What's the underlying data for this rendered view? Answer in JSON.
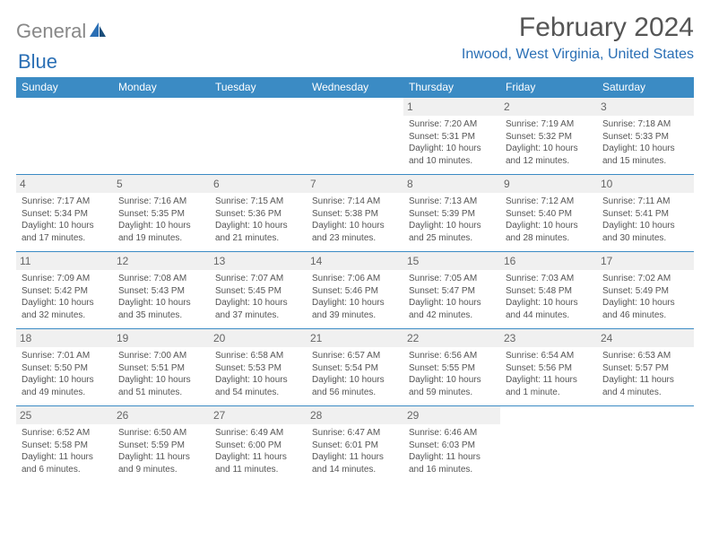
{
  "logo": {
    "text1": "General",
    "text2": "Blue"
  },
  "title": "February 2024",
  "location": "Inwood, West Virginia, United States",
  "colors": {
    "header_bg": "#3b8bc4",
    "header_text": "#ffffff",
    "accent": "#2a6fb5",
    "daynum_bg": "#f0f0f0",
    "body_text": "#555555",
    "row_divider": "#3b8bc4"
  },
  "day_headers": [
    "Sunday",
    "Monday",
    "Tuesday",
    "Wednesday",
    "Thursday",
    "Friday",
    "Saturday"
  ],
  "weeks": [
    [
      {
        "n": "",
        "sr": "",
        "ss": "",
        "dl": ""
      },
      {
        "n": "",
        "sr": "",
        "ss": "",
        "dl": ""
      },
      {
        "n": "",
        "sr": "",
        "ss": "",
        "dl": ""
      },
      {
        "n": "",
        "sr": "",
        "ss": "",
        "dl": ""
      },
      {
        "n": "1",
        "sr": "Sunrise: 7:20 AM",
        "ss": "Sunset: 5:31 PM",
        "dl": "Daylight: 10 hours and 10 minutes."
      },
      {
        "n": "2",
        "sr": "Sunrise: 7:19 AM",
        "ss": "Sunset: 5:32 PM",
        "dl": "Daylight: 10 hours and 12 minutes."
      },
      {
        "n": "3",
        "sr": "Sunrise: 7:18 AM",
        "ss": "Sunset: 5:33 PM",
        "dl": "Daylight: 10 hours and 15 minutes."
      }
    ],
    [
      {
        "n": "4",
        "sr": "Sunrise: 7:17 AM",
        "ss": "Sunset: 5:34 PM",
        "dl": "Daylight: 10 hours and 17 minutes."
      },
      {
        "n": "5",
        "sr": "Sunrise: 7:16 AM",
        "ss": "Sunset: 5:35 PM",
        "dl": "Daylight: 10 hours and 19 minutes."
      },
      {
        "n": "6",
        "sr": "Sunrise: 7:15 AM",
        "ss": "Sunset: 5:36 PM",
        "dl": "Daylight: 10 hours and 21 minutes."
      },
      {
        "n": "7",
        "sr": "Sunrise: 7:14 AM",
        "ss": "Sunset: 5:38 PM",
        "dl": "Daylight: 10 hours and 23 minutes."
      },
      {
        "n": "8",
        "sr": "Sunrise: 7:13 AM",
        "ss": "Sunset: 5:39 PM",
        "dl": "Daylight: 10 hours and 25 minutes."
      },
      {
        "n": "9",
        "sr": "Sunrise: 7:12 AM",
        "ss": "Sunset: 5:40 PM",
        "dl": "Daylight: 10 hours and 28 minutes."
      },
      {
        "n": "10",
        "sr": "Sunrise: 7:11 AM",
        "ss": "Sunset: 5:41 PM",
        "dl": "Daylight: 10 hours and 30 minutes."
      }
    ],
    [
      {
        "n": "11",
        "sr": "Sunrise: 7:09 AM",
        "ss": "Sunset: 5:42 PM",
        "dl": "Daylight: 10 hours and 32 minutes."
      },
      {
        "n": "12",
        "sr": "Sunrise: 7:08 AM",
        "ss": "Sunset: 5:43 PM",
        "dl": "Daylight: 10 hours and 35 minutes."
      },
      {
        "n": "13",
        "sr": "Sunrise: 7:07 AM",
        "ss": "Sunset: 5:45 PM",
        "dl": "Daylight: 10 hours and 37 minutes."
      },
      {
        "n": "14",
        "sr": "Sunrise: 7:06 AM",
        "ss": "Sunset: 5:46 PM",
        "dl": "Daylight: 10 hours and 39 minutes."
      },
      {
        "n": "15",
        "sr": "Sunrise: 7:05 AM",
        "ss": "Sunset: 5:47 PM",
        "dl": "Daylight: 10 hours and 42 minutes."
      },
      {
        "n": "16",
        "sr": "Sunrise: 7:03 AM",
        "ss": "Sunset: 5:48 PM",
        "dl": "Daylight: 10 hours and 44 minutes."
      },
      {
        "n": "17",
        "sr": "Sunrise: 7:02 AM",
        "ss": "Sunset: 5:49 PM",
        "dl": "Daylight: 10 hours and 46 minutes."
      }
    ],
    [
      {
        "n": "18",
        "sr": "Sunrise: 7:01 AM",
        "ss": "Sunset: 5:50 PM",
        "dl": "Daylight: 10 hours and 49 minutes."
      },
      {
        "n": "19",
        "sr": "Sunrise: 7:00 AM",
        "ss": "Sunset: 5:51 PM",
        "dl": "Daylight: 10 hours and 51 minutes."
      },
      {
        "n": "20",
        "sr": "Sunrise: 6:58 AM",
        "ss": "Sunset: 5:53 PM",
        "dl": "Daylight: 10 hours and 54 minutes."
      },
      {
        "n": "21",
        "sr": "Sunrise: 6:57 AM",
        "ss": "Sunset: 5:54 PM",
        "dl": "Daylight: 10 hours and 56 minutes."
      },
      {
        "n": "22",
        "sr": "Sunrise: 6:56 AM",
        "ss": "Sunset: 5:55 PM",
        "dl": "Daylight: 10 hours and 59 minutes."
      },
      {
        "n": "23",
        "sr": "Sunrise: 6:54 AM",
        "ss": "Sunset: 5:56 PM",
        "dl": "Daylight: 11 hours and 1 minute."
      },
      {
        "n": "24",
        "sr": "Sunrise: 6:53 AM",
        "ss": "Sunset: 5:57 PM",
        "dl": "Daylight: 11 hours and 4 minutes."
      }
    ],
    [
      {
        "n": "25",
        "sr": "Sunrise: 6:52 AM",
        "ss": "Sunset: 5:58 PM",
        "dl": "Daylight: 11 hours and 6 minutes."
      },
      {
        "n": "26",
        "sr": "Sunrise: 6:50 AM",
        "ss": "Sunset: 5:59 PM",
        "dl": "Daylight: 11 hours and 9 minutes."
      },
      {
        "n": "27",
        "sr": "Sunrise: 6:49 AM",
        "ss": "Sunset: 6:00 PM",
        "dl": "Daylight: 11 hours and 11 minutes."
      },
      {
        "n": "28",
        "sr": "Sunrise: 6:47 AM",
        "ss": "Sunset: 6:01 PM",
        "dl": "Daylight: 11 hours and 14 minutes."
      },
      {
        "n": "29",
        "sr": "Sunrise: 6:46 AM",
        "ss": "Sunset: 6:03 PM",
        "dl": "Daylight: 11 hours and 16 minutes."
      },
      {
        "n": "",
        "sr": "",
        "ss": "",
        "dl": ""
      },
      {
        "n": "",
        "sr": "",
        "ss": "",
        "dl": ""
      }
    ]
  ]
}
